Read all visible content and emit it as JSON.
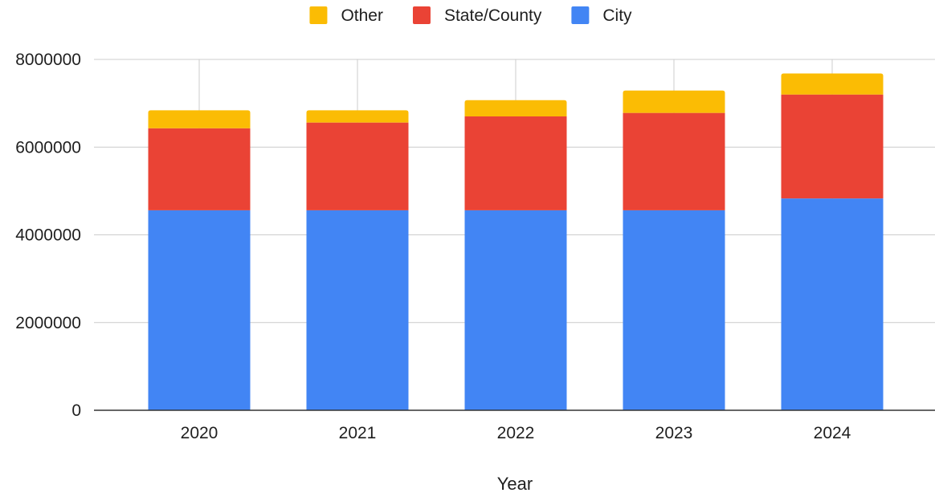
{
  "chart_data": {
    "type": "bar",
    "stacked": true,
    "categories": [
      "2020",
      "2021",
      "2022",
      "2023",
      "2024"
    ],
    "series": [
      {
        "name": "City",
        "color": "#4285f4",
        "values": [
          4560000,
          4560000,
          4560000,
          4560000,
          4830000
        ]
      },
      {
        "name": "State/County",
        "color": "#ea4335",
        "values": [
          1870000,
          2000000,
          2140000,
          2220000,
          2370000
        ]
      },
      {
        "name": "Other",
        "color": "#fbbc04",
        "values": [
          410000,
          280000,
          370000,
          510000,
          480000
        ]
      }
    ],
    "legend_order": [
      "Other",
      "State/County",
      "City"
    ],
    "legend_position": "top-center",
    "xlabel": "Year",
    "ylabel": "",
    "ylim": [
      0,
      8000000
    ],
    "yticks": [
      "0",
      "2000000",
      "4000000",
      "6000000",
      "8000000"
    ],
    "grid": true
  }
}
